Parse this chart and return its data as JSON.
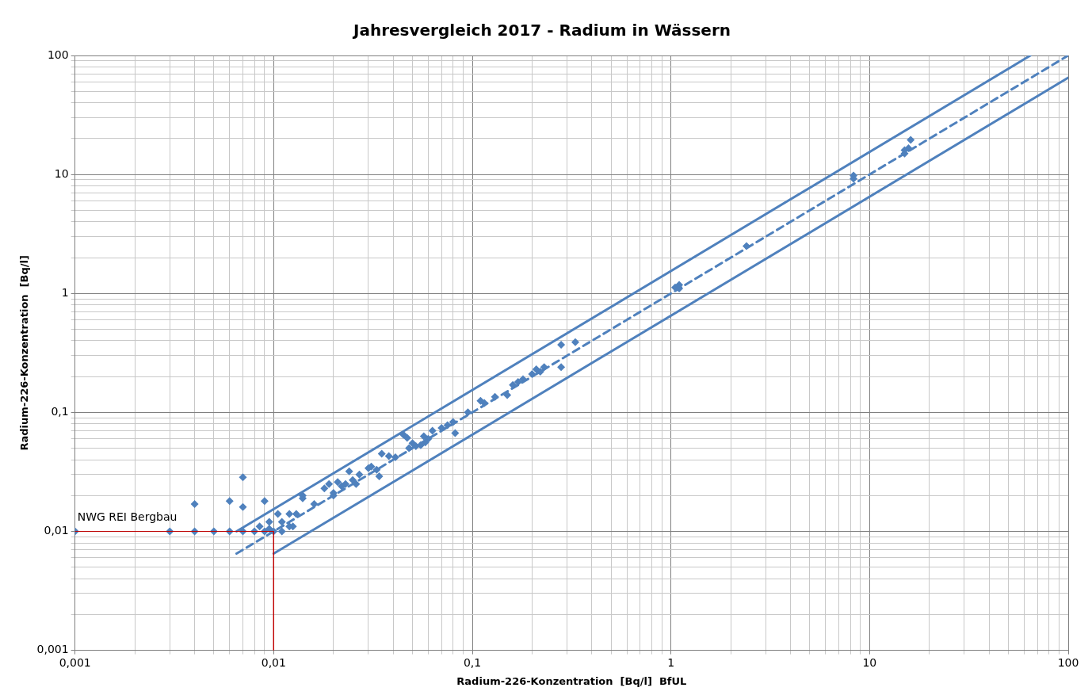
{
  "chart_data": {
    "type": "scatter",
    "title": "Jahresvergleich 2017 - Radium in Wässern",
    "xlabel": "Radium-226-Konzentration  [Bq/l]  BfUL",
    "ylabel": "Radium-226-Konzentration  [Bq/l]",
    "log": "xy",
    "grid": true,
    "legend": false,
    "marker": "diamond",
    "xlim": [
      0.001,
      100
    ],
    "ylim": [
      0.001,
      100
    ],
    "xticks": [
      {
        "value": 0.001,
        "label": "0,001"
      },
      {
        "value": 0.002,
        "label": null
      },
      {
        "value": 0.003,
        "label": null
      },
      {
        "value": 0.004,
        "label": null
      },
      {
        "value": 0.005,
        "label": null
      },
      {
        "value": 0.006,
        "label": null
      },
      {
        "value": 0.007,
        "label": null
      },
      {
        "value": 0.008,
        "label": null
      },
      {
        "value": 0.009,
        "label": null
      },
      {
        "value": 0.01,
        "label": "0,01"
      },
      {
        "value": 0.02,
        "label": null
      },
      {
        "value": 0.03,
        "label": null
      },
      {
        "value": 0.04,
        "label": null
      },
      {
        "value": 0.05,
        "label": null
      },
      {
        "value": 0.06,
        "label": null
      },
      {
        "value": 0.07,
        "label": null
      },
      {
        "value": 0.08,
        "label": null
      },
      {
        "value": 0.09,
        "label": null
      },
      {
        "value": 0.1,
        "label": "0,1"
      },
      {
        "value": 0.2,
        "label": null
      },
      {
        "value": 0.3,
        "label": null
      },
      {
        "value": 0.4,
        "label": null
      },
      {
        "value": 0.5,
        "label": null
      },
      {
        "value": 0.6,
        "label": null
      },
      {
        "value": 0.7,
        "label": null
      },
      {
        "value": 0.8,
        "label": null
      },
      {
        "value": 0.9,
        "label": null
      },
      1,
      {
        "value": 2,
        "label": null
      },
      {
        "value": 3,
        "label": null
      },
      {
        "value": 4,
        "label": null
      },
      {
        "value": 5,
        "label": null
      },
      {
        "value": 6,
        "label": null
      },
      {
        "value": 7,
        "label": null
      },
      {
        "value": 8,
        "label": null
      },
      {
        "value": 9,
        "label": null
      },
      10,
      {
        "value": 20,
        "label": null
      },
      {
        "value": 30,
        "label": null
      },
      {
        "value": 40,
        "label": null
      },
      {
        "value": 50,
        "label": null
      },
      {
        "value": 60,
        "label": null
      },
      {
        "value": 70,
        "label": null
      },
      {
        "value": 80,
        "label": null
      },
      {
        "value": 90,
        "label": null
      },
      100
    ],
    "yticks": [
      {
        "value": 0.001,
        "label": "0,001"
      },
      {
        "value": 0.002,
        "label": null
      },
      {
        "value": 0.003,
        "label": null
      },
      {
        "value": 0.004,
        "label": null
      },
      {
        "value": 0.005,
        "label": null
      },
      {
        "value": 0.006,
        "label": null
      },
      {
        "value": 0.007,
        "label": null
      },
      {
        "value": 0.008,
        "label": null
      },
      {
        "value": 0.009,
        "label": null
      },
      {
        "value": 0.01,
        "label": "0,01"
      },
      {
        "value": 0.02,
        "label": null
      },
      {
        "value": 0.03,
        "label": null
      },
      {
        "value": 0.04,
        "label": null
      },
      {
        "value": 0.05,
        "label": null
      },
      {
        "value": 0.06,
        "label": null
      },
      {
        "value": 0.07,
        "label": null
      },
      {
        "value": 0.08,
        "label": null
      },
      {
        "value": 0.09,
        "label": null
      },
      {
        "value": 0.1,
        "label": "0,1"
      },
      {
        "value": 0.2,
        "label": null
      },
      {
        "value": 0.3,
        "label": null
      },
      {
        "value": 0.4,
        "label": null
      },
      {
        "value": 0.5,
        "label": null
      },
      {
        "value": 0.6,
        "label": null
      },
      {
        "value": 0.7,
        "label": null
      },
      {
        "value": 0.8,
        "label": null
      },
      {
        "value": 0.9,
        "label": null
      },
      1,
      {
        "value": 2,
        "label": null
      },
      {
        "value": 3,
        "label": null
      },
      {
        "value": 4,
        "label": null
      },
      {
        "value": 5,
        "label": null
      },
      {
        "value": 6,
        "label": null
      },
      {
        "value": 7,
        "label": null
      },
      {
        "value": 8,
        "label": null
      },
      {
        "value": 9,
        "label": null
      },
      10,
      {
        "value": 20,
        "label": null
      },
      {
        "value": 30,
        "label": null
      },
      {
        "value": 40,
        "label": null
      },
      {
        "value": 50,
        "label": null
      },
      {
        "value": 60,
        "label": null
      },
      {
        "value": 70,
        "label": null
      },
      {
        "value": 80,
        "label": null
      },
      {
        "value": 90,
        "label": null
      },
      100
    ],
    "annotations": [
      {
        "text": "NWG REI Bergbau",
        "x": 0.001,
        "y": 0.01
      }
    ],
    "series": [
      {
        "type": "line",
        "color": "#c00000",
        "line_style": "solid",
        "marker": "none",
        "x": [
          0.001,
          0.01,
          0.01
        ],
        "values": [
          0.01,
          0.01,
          0.001
        ]
      },
      {
        "type": "line",
        "color": "#4f81bd",
        "line_style": "dashed",
        "marker": "none",
        "x": [
          0.0065,
          100
        ],
        "values": [
          0.0065,
          100
        ]
      },
      {
        "type": "line",
        "color": "#4f81bd",
        "line_style": "solid",
        "marker": "none",
        "x": [
          0.0065,
          64.5
        ],
        "values": [
          0.01,
          100
        ]
      },
      {
        "type": "line",
        "color": "#4f81bd",
        "line_style": "solid",
        "marker": "none",
        "x": [
          0.01,
          100
        ],
        "values": [
          0.0065,
          65
        ]
      },
      {
        "color": "#4f81bd",
        "x": [
          0.001,
          0.003,
          0.004,
          0.005,
          0.006,
          0.007,
          0.008,
          0.009,
          0.004,
          0.006,
          0.007,
          0.007,
          0.009,
          0.0095,
          0.01,
          0.0105,
          0.011,
          0.011,
          0.012,
          0.012,
          0.0125,
          0.013,
          0.0085,
          0.0095,
          0.014,
          0.014,
          0.016,
          0.018,
          0.019,
          0.02,
          0.02,
          0.021,
          0.022,
          0.023,
          0.024,
          0.025,
          0.026,
          0.027,
          0.03,
          0.031,
          0.033,
          0.034,
          0.035,
          0.038,
          0.041,
          0.045,
          0.047,
          0.048,
          0.05,
          0.052,
          0.055,
          0.057,
          0.058,
          0.06,
          0.063,
          0.07,
          0.075,
          0.08,
          0.082,
          0.095,
          0.11,
          0.115,
          0.13,
          0.15,
          0.16,
          0.17,
          0.18,
          0.2,
          0.21,
          0.22,
          0.23,
          0.28,
          0.28,
          0.33,
          1.05,
          1.1,
          1.1,
          2.4,
          8.3,
          8.3,
          15,
          15,
          15.7,
          16.1
        ],
        "values": [
          0.01,
          0.01,
          0.01,
          0.01,
          0.01,
          0.01,
          0.01,
          0.01,
          0.017,
          0.018,
          0.0285,
          0.016,
          0.018,
          0.012,
          0.01,
          0.014,
          0.012,
          0.01,
          0.011,
          0.014,
          0.011,
          0.014,
          0.011,
          0.0105,
          0.02,
          0.019,
          0.017,
          0.023,
          0.025,
          0.021,
          0.02,
          0.026,
          0.024,
          0.025,
          0.032,
          0.027,
          0.025,
          0.03,
          0.034,
          0.035,
          0.033,
          0.029,
          0.045,
          0.043,
          0.042,
          0.065,
          0.061,
          0.05,
          0.055,
          0.052,
          0.053,
          0.063,
          0.056,
          0.06,
          0.07,
          0.074,
          0.078,
          0.083,
          0.067,
          0.1,
          0.125,
          0.12,
          0.135,
          0.14,
          0.17,
          0.18,
          0.19,
          0.21,
          0.23,
          0.22,
          0.24,
          0.37,
          0.24,
          0.39,
          1.12,
          1.18,
          1.1,
          2.5,
          9.8,
          9.2,
          16,
          15,
          16.6,
          19.5
        ]
      }
    ]
  }
}
